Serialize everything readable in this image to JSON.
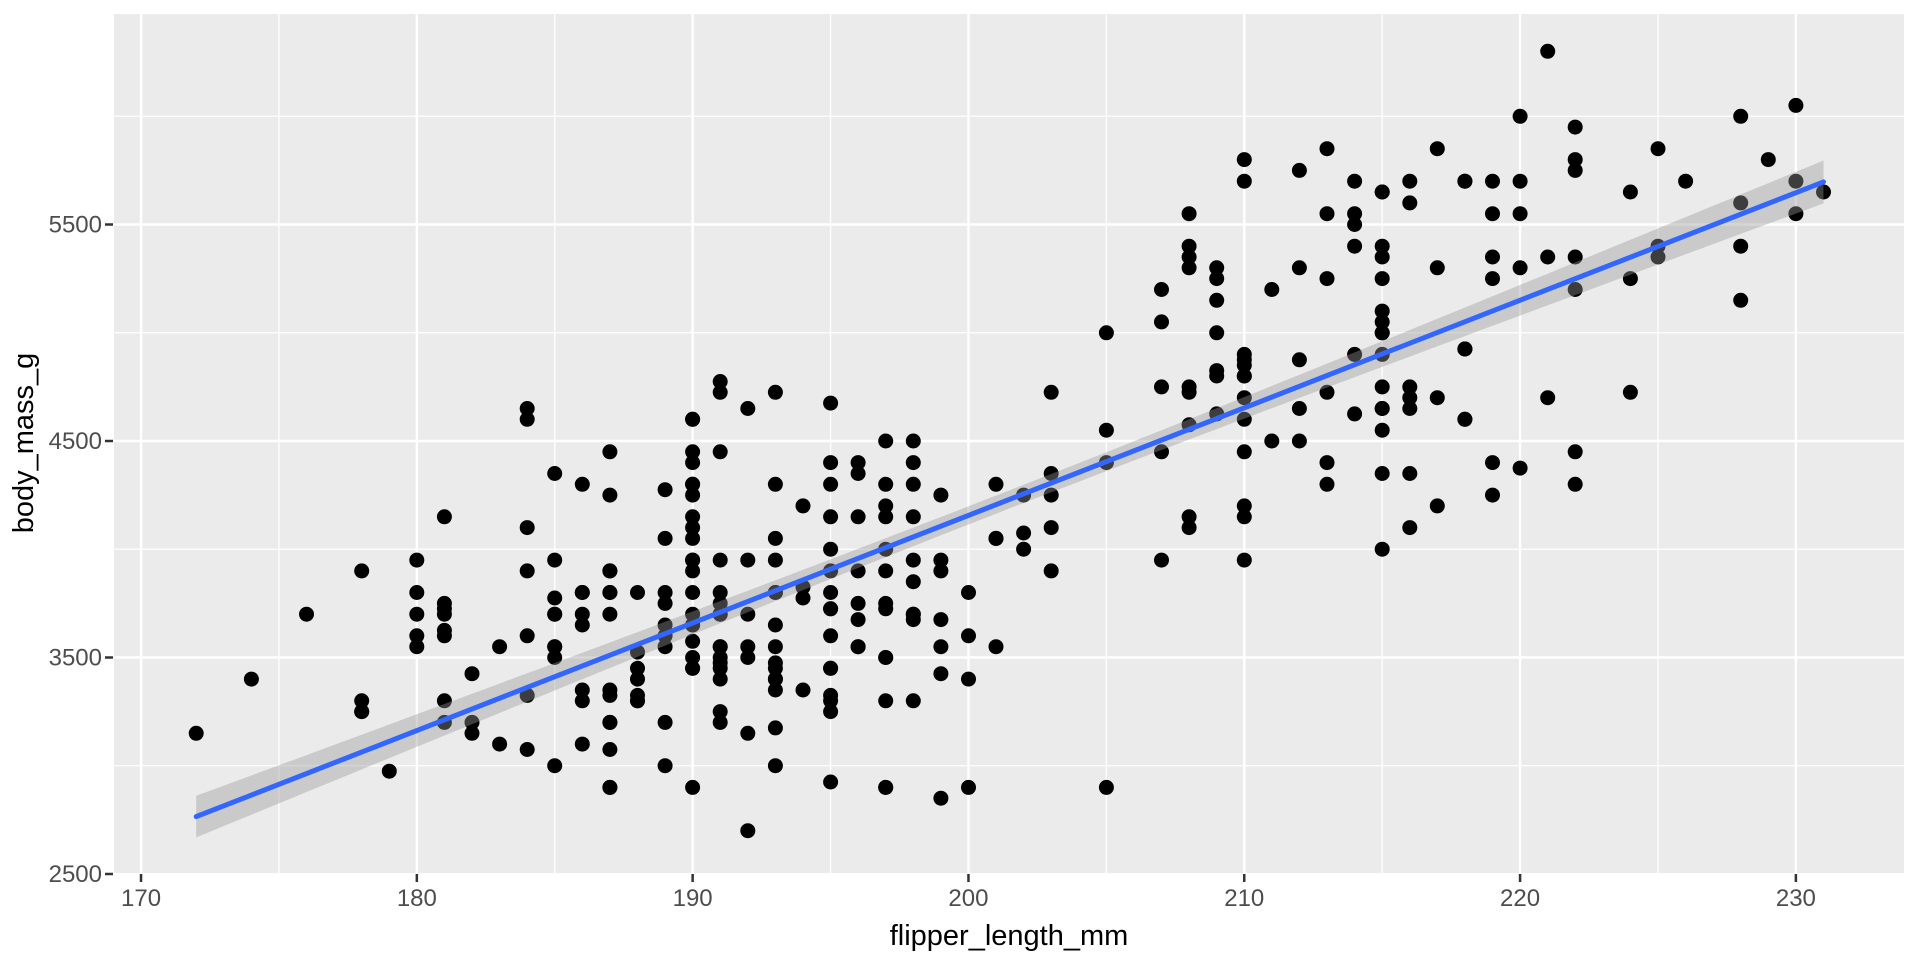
{
  "figure": {
    "background": "#FFFFFF",
    "panel_background": "#EBEBEB",
    "grid_major_color": "#FFFFFF",
    "grid_minor_color": "#FFFFFF",
    "point_color": "#000000",
    "smooth_line_color": "#3366FF",
    "ribbon_color": "rgba(153,153,153,0.4)",
    "tick_mark_color": "#333333",
    "tick_label_color": "#4D4D4D",
    "axis_title_color": "#000000"
  },
  "chart_data": {
    "type": "scatter",
    "title": "",
    "xlabel": "flipper_length_mm",
    "ylabel": "body_mass_g",
    "xlim": [
      169.02,
      233.92
    ],
    "ylim": [
      2504.6,
      6472.3
    ],
    "grid": true,
    "legend": false,
    "x_major_ticks": [
      170,
      180,
      190,
      200,
      210,
      220,
      230
    ],
    "x_tick_labels": [
      "170",
      "180",
      "190",
      "200",
      "210",
      "220",
      "230"
    ],
    "x_minor_ticks": [
      175,
      185,
      195,
      205,
      215,
      225
    ],
    "y_major_ticks": [
      2500,
      3500,
      4500,
      5500
    ],
    "y_tick_labels": [
      "2500",
      "3500",
      "4500",
      "5500"
    ],
    "y_minor_ticks": [
      3000,
      4000,
      5000,
      6000
    ],
    "smooth": {
      "method": "lm",
      "slope": 49.686,
      "intercept": -5780.83,
      "x_start": 172,
      "x_end": 231,
      "ci": {
        "t_times_s": 775,
        "inv_n": 0.002924,
        "x_mean": 200.92,
        "sxx": 67426
      }
    },
    "n_points": 342,
    "points": [
      [
        181,
        3750
      ],
      [
        186,
        3800
      ],
      [
        195,
        3250
      ],
      [
        193,
        3450
      ],
      [
        190,
        3650
      ],
      [
        181,
        3625
      ],
      [
        195,
        4675
      ],
      [
        193,
        3475
      ],
      [
        190,
        4250
      ],
      [
        186,
        3300
      ],
      [
        180,
        3700
      ],
      [
        182,
        3200
      ],
      [
        191,
        3800
      ],
      [
        198,
        4400
      ],
      [
        185,
        3700
      ],
      [
        195,
        3450
      ],
      [
        197,
        4500
      ],
      [
        184,
        3325
      ],
      [
        194,
        4200
      ],
      [
        174,
        3400
      ],
      [
        180,
        3600
      ],
      [
        189,
        3800
      ],
      [
        185,
        3950
      ],
      [
        180,
        3800
      ],
      [
        187,
        3800
      ],
      [
        183,
        3550
      ],
      [
        187,
        3200
      ],
      [
        172,
        3150
      ],
      [
        180,
        3950
      ],
      [
        178,
        3250
      ],
      [
        178,
        3900
      ],
      [
        188,
        3300
      ],
      [
        184,
        3900
      ],
      [
        195,
        3325
      ],
      [
        196,
        4150
      ],
      [
        190,
        3950
      ],
      [
        180,
        3550
      ],
      [
        181,
        3300
      ],
      [
        184,
        4650
      ],
      [
        182,
        3150
      ],
      [
        195,
        3900
      ],
      [
        186,
        3100
      ],
      [
        196,
        4400
      ],
      [
        185,
        3000
      ],
      [
        190,
        4600
      ],
      [
        182,
        3425
      ],
      [
        179,
        2975
      ],
      [
        190,
        4150
      ],
      [
        191,
        3500
      ],
      [
        186,
        4300
      ],
      [
        188,
        3450
      ],
      [
        190,
        4050
      ],
      [
        200,
        2900
      ],
      [
        187,
        3700
      ],
      [
        191,
        3550
      ],
      [
        186,
        3800
      ],
      [
        193,
        3950
      ],
      [
        181,
        3200
      ],
      [
        194,
        3350
      ],
      [
        185,
        3550
      ],
      [
        195,
        3800
      ],
      [
        185,
        3500
      ],
      [
        192,
        3950
      ],
      [
        184,
        3600
      ],
      [
        192,
        3550
      ],
      [
        195,
        4300
      ],
      [
        188,
        3400
      ],
      [
        190,
        4450
      ],
      [
        198,
        3300
      ],
      [
        190,
        4300
      ],
      [
        190,
        3700
      ],
      [
        196,
        4350
      ],
      [
        197,
        2900
      ],
      [
        190,
        4100
      ],
      [
        195,
        3725
      ],
      [
        191,
        4725
      ],
      [
        184,
        3075
      ],
      [
        187,
        4250
      ],
      [
        195,
        2925
      ],
      [
        189,
        3550
      ],
      [
        196,
        3750
      ],
      [
        187,
        3900
      ],
      [
        193,
        3175
      ],
      [
        191,
        4775
      ],
      [
        194,
        3825
      ],
      [
        190,
        4600
      ],
      [
        189,
        3200
      ],
      [
        189,
        4275
      ],
      [
        190,
        3900
      ],
      [
        202,
        4075
      ],
      [
        205,
        2900
      ],
      [
        185,
        3775
      ],
      [
        186,
        3350
      ],
      [
        187,
        3325
      ],
      [
        208,
        4150
      ],
      [
        190,
        3950
      ],
      [
        196,
        3550
      ],
      [
        178,
        3300
      ],
      [
        192,
        4650
      ],
      [
        192,
        3150
      ],
      [
        203,
        3900
      ],
      [
        183,
        3100
      ],
      [
        190,
        4400
      ],
      [
        193,
        3000
      ],
      [
        184,
        4600
      ],
      [
        199,
        3425
      ],
      [
        190,
        3450
      ],
      [
        181,
        4150
      ],
      [
        197,
        3500
      ],
      [
        198,
        4300
      ],
      [
        191,
        3450
      ],
      [
        193,
        4050
      ],
      [
        197,
        2900
      ],
      [
        191,
        3700
      ],
      [
        196,
        3550
      ],
      [
        188,
        3800
      ],
      [
        199,
        2850
      ],
      [
        189,
        3750
      ],
      [
        189,
        3000
      ],
      [
        187,
        3900
      ],
      [
        198,
        4150
      ],
      [
        176,
        3700
      ],
      [
        202,
        4250
      ],
      [
        186,
        3700
      ],
      [
        199,
        3900
      ],
      [
        191,
        3550
      ],
      [
        195,
        4000
      ],
      [
        191,
        3200
      ],
      [
        210,
        4700
      ],
      [
        190,
        3800
      ],
      [
        197,
        4200
      ],
      [
        193,
        3350
      ],
      [
        199,
        3550
      ],
      [
        187,
        3800
      ],
      [
        190,
        3500
      ],
      [
        191,
        3950
      ],
      [
        200,
        3600
      ],
      [
        185,
        3550
      ],
      [
        193,
        4300
      ],
      [
        193,
        3400
      ],
      [
        187,
        4450
      ],
      [
        188,
        3300
      ],
      [
        190,
        4300
      ],
      [
        192,
        3700
      ],
      [
        185,
        4350
      ],
      [
        190,
        2900
      ],
      [
        184,
        4100
      ],
      [
        195,
        3725
      ],
      [
        193,
        4725
      ],
      [
        187,
        3075
      ],
      [
        192,
        3500
      ],
      [
        196,
        3900
      ],
      [
        193,
        3650
      ],
      [
        188,
        3525
      ],
      [
        197,
        3725
      ],
      [
        198,
        3950
      ],
      [
        178,
        3250
      ],
      [
        197,
        3750
      ],
      [
        195,
        4150
      ],
      [
        198,
        3700
      ],
      [
        193,
        3800
      ],
      [
        194,
        3775
      ],
      [
        185,
        3700
      ],
      [
        201,
        4050
      ],
      [
        190,
        3575
      ],
      [
        201,
        4050
      ],
      [
        197,
        3300
      ],
      [
        181,
        3700
      ],
      [
        190,
        3450
      ],
      [
        195,
        4400
      ],
      [
        181,
        3600
      ],
      [
        191,
        3400
      ],
      [
        187,
        2900
      ],
      [
        193,
        3800
      ],
      [
        195,
        3300
      ],
      [
        197,
        4150
      ],
      [
        200,
        3400
      ],
      [
        200,
        3800
      ],
      [
        191,
        3700
      ],
      [
        205,
        4550
      ],
      [
        187,
        3200
      ],
      [
        201,
        4300
      ],
      [
        187,
        3350
      ],
      [
        203,
        4100
      ],
      [
        195,
        3600
      ],
      [
        197,
        3900
      ],
      [
        198,
        3850
      ],
      [
        210,
        4800
      ],
      [
        192,
        2700
      ],
      [
        198,
        4500
      ],
      [
        210,
        3950
      ],
      [
        189,
        3650
      ],
      [
        201,
        3550
      ],
      [
        197,
        3500
      ],
      [
        198,
        3675
      ],
      [
        191,
        4450
      ],
      [
        193,
        3400
      ],
      [
        197,
        4300
      ],
      [
        191,
        3250
      ],
      [
        196,
        3675
      ],
      [
        188,
        3325
      ],
      [
        199,
        3950
      ],
      [
        189,
        3600
      ],
      [
        189,
        4050
      ],
      [
        187,
        2900
      ],
      [
        198,
        3700
      ],
      [
        181,
        3725
      ],
      [
        202,
        4000
      ],
      [
        186,
        3650
      ],
      [
        199,
        4250
      ],
      [
        191,
        3475
      ],
      [
        195,
        3450
      ],
      [
        191,
        3750
      ],
      [
        212,
        4500
      ],
      [
        190,
        3650
      ],
      [
        197,
        4000
      ],
      [
        193,
        3550
      ],
      [
        199,
        3675
      ],
      [
        211,
        4500
      ],
      [
        230,
        5700
      ],
      [
        210,
        4450
      ],
      [
        218,
        5700
      ],
      [
        215,
        4550
      ],
      [
        210,
        4800
      ],
      [
        211,
        5200
      ],
      [
        219,
        4400
      ],
      [
        209,
        5150
      ],
      [
        215,
        4650
      ],
      [
        214,
        5550
      ],
      [
        216,
        4650
      ],
      [
        213,
        5850
      ],
      [
        210,
        4200
      ],
      [
        217,
        5850
      ],
      [
        210,
        4150
      ],
      [
        221,
        6300
      ],
      [
        209,
        4800
      ],
      [
        222,
        5350
      ],
      [
        218,
        5700
      ],
      [
        215,
        5000
      ],
      [
        213,
        4400
      ],
      [
        215,
        5050
      ],
      [
        215,
        5000
      ],
      [
        215,
        5100
      ],
      [
        216,
        4100
      ],
      [
        215,
        5650
      ],
      [
        210,
        4600
      ],
      [
        220,
        5550
      ],
      [
        222,
        4450
      ],
      [
        209,
        5250
      ],
      [
        207,
        4750
      ],
      [
        230,
        5550
      ],
      [
        207,
        3950
      ],
      [
        218,
        4600
      ],
      [
        219,
        5250
      ],
      [
        208,
        4750
      ],
      [
        208,
        5550
      ],
      [
        203,
        4350
      ],
      [
        207,
        5050
      ],
      [
        219,
        5700
      ],
      [
        208,
        4575
      ],
      [
        214,
        5500
      ],
      [
        216,
        4700
      ],
      [
        214,
        5400
      ],
      [
        213,
        4300
      ],
      [
        210,
        5800
      ],
      [
        217,
        4200
      ],
      [
        214,
        5700
      ],
      [
        221,
        4700
      ],
      [
        209,
        5300
      ],
      [
        222,
        5750
      ],
      [
        218,
        4925
      ],
      [
        215,
        4350
      ],
      [
        213,
        5550
      ],
      [
        215,
        4900
      ],
      [
        215,
        5650
      ],
      [
        215,
        4000
      ],
      [
        216,
        5700
      ],
      [
        215,
        4650
      ],
      [
        210,
        5700
      ],
      [
        220,
        4375
      ],
      [
        222,
        5800
      ],
      [
        209,
        4825
      ],
      [
        207,
        5200
      ],
      [
        228,
        5400
      ],
      [
        220,
        6000
      ],
      [
        218,
        4600
      ],
      [
        219,
        5350
      ],
      [
        208,
        4100
      ],
      [
        208,
        5300
      ],
      [
        203,
        4725
      ],
      [
        205,
        5000
      ],
      [
        219,
        4250
      ],
      [
        208,
        5350
      ],
      [
        214,
        4900
      ],
      [
        216,
        5600
      ],
      [
        214,
        4625
      ],
      [
        213,
        5250
      ],
      [
        210,
        4850
      ],
      [
        217,
        5300
      ],
      [
        210,
        4875
      ],
      [
        221,
        5350
      ],
      [
        209,
        4625
      ],
      [
        222,
        5200
      ],
      [
        218,
        4925
      ],
      [
        212,
        5750
      ],
      [
        213,
        4725
      ],
      [
        215,
        5400
      ],
      [
        215,
        4750
      ],
      [
        215,
        5250
      ],
      [
        216,
        4350
      ],
      [
        215,
        5350
      ],
      [
        210,
        4900
      ],
      [
        220,
        5700
      ],
      [
        222,
        4300
      ],
      [
        209,
        5000
      ],
      [
        207,
        4450
      ],
      [
        230,
        6050
      ],
      [
        220,
        5300
      ],
      [
        218,
        4925
      ],
      [
        219,
        5550
      ],
      [
        208,
        4725
      ],
      [
        208,
        5400
      ],
      [
        203,
        4250
      ],
      [
        205,
        4400
      ],
      [
        224,
        5650
      ],
      [
        226,
        5700
      ],
      [
        229,
        5800
      ],
      [
        231,
        5650
      ],
      [
        225,
        5350
      ],
      [
        228,
        5600
      ],
      [
        212,
        5300
      ],
      [
        224,
        4725
      ],
      [
        212,
        4875
      ],
      [
        228,
        5150
      ],
      [
        225,
        5400
      ],
      [
        224,
        5250
      ],
      [
        212,
        4650
      ],
      [
        225,
        5850
      ],
      [
        228,
        6000
      ],
      [
        217,
        4700
      ],
      [
        222,
        5950
      ],
      [
        216,
        4750
      ]
    ]
  }
}
